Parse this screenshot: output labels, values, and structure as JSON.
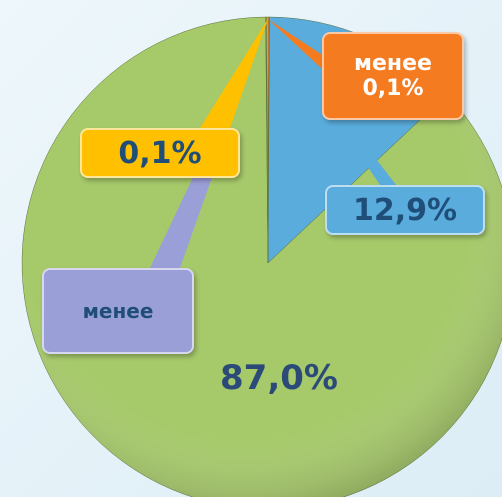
{
  "chart_data": {
    "type": "pie",
    "values": [
      0.1,
      12.9,
      87.0,
      0.05,
      0.1
    ],
    "value_labels": [
      "менее\n0,1%",
      "12,9%",
      "87,0%",
      "менее",
      "0,1%"
    ],
    "colors": [
      "#f47b20",
      "#5aacdc",
      "#a6c96a",
      "#9b9fd8",
      "#ffc000"
    ]
  }
}
